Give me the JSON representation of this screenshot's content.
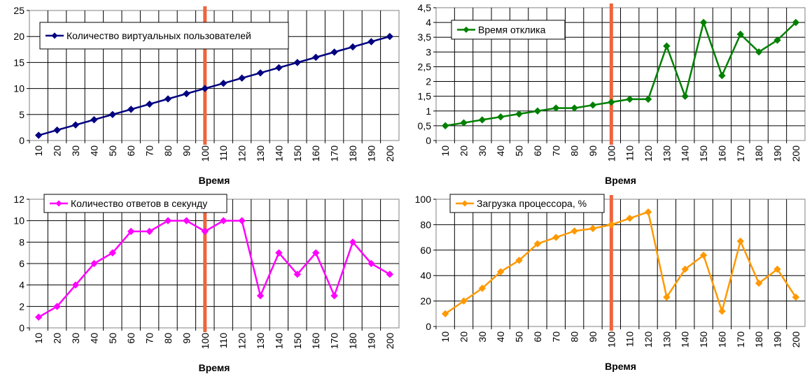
{
  "chart_data": [
    {
      "type": "line",
      "x": [
        10,
        20,
        30,
        40,
        50,
        60,
        70,
        80,
        90,
        100,
        110,
        120,
        130,
        140,
        150,
        160,
        170,
        180,
        190,
        200
      ],
      "series": [
        {
          "name": "Количество виртуальных пользователей",
          "color": "#000080",
          "values": [
            1,
            2,
            3,
            4,
            5,
            6,
            7,
            8,
            9,
            10,
            11,
            12,
            13,
            14,
            15,
            16,
            17,
            18,
            19,
            20
          ]
        }
      ],
      "ylim": [
        0,
        25
      ],
      "yticks": [
        "0",
        "5",
        "10",
        "15",
        "20",
        "25"
      ],
      "xlabel": "Время",
      "marker_x": 100,
      "marker_color": "#f0643c",
      "grid": true,
      "legend": "top-left"
    },
    {
      "type": "line",
      "x": [
        10,
        20,
        30,
        40,
        50,
        60,
        70,
        80,
        90,
        100,
        110,
        120,
        130,
        140,
        150,
        160,
        170,
        180,
        190,
        200
      ],
      "series": [
        {
          "name": "Время отклика",
          "color": "#008000",
          "values": [
            0.5,
            0.6,
            0.7,
            0.8,
            0.9,
            1.0,
            1.1,
            1.1,
            1.2,
            1.3,
            1.4,
            1.4,
            3.2,
            1.5,
            4.0,
            2.2,
            3.6,
            3.0,
            3.4,
            4.0
          ]
        }
      ],
      "ylim": [
        0,
        4.5
      ],
      "yticks": [
        "0",
        "0,5",
        "1",
        "1,5",
        "2",
        "2,5",
        "3",
        "3,5",
        "4",
        "4,5"
      ],
      "xlabel": "Время",
      "marker_x": 100,
      "marker_color": "#f0643c",
      "grid": true,
      "legend": "top-left"
    },
    {
      "type": "line",
      "x": [
        10,
        20,
        30,
        40,
        50,
        60,
        70,
        80,
        90,
        100,
        110,
        120,
        130,
        140,
        150,
        160,
        170,
        180,
        190,
        200
      ],
      "series": [
        {
          "name": "Количество ответов в секунду",
          "color": "#ff00ff",
          "values": [
            1,
            2,
            4,
            6,
            7,
            9,
            9,
            10,
            10,
            9,
            10,
            10,
            3,
            7,
            5,
            7,
            3,
            8,
            6,
            5
          ]
        }
      ],
      "ylim": [
        0,
        12
      ],
      "yticks": [
        "0",
        "2",
        "4",
        "6",
        "8",
        "10",
        "12"
      ],
      "xlabel": "Время",
      "marker_x": 100,
      "marker_color": "#f0643c",
      "grid": true,
      "legend": "top-left"
    },
    {
      "type": "line",
      "x": [
        10,
        20,
        30,
        40,
        50,
        60,
        70,
        80,
        90,
        100,
        110,
        120,
        130,
        140,
        150,
        160,
        170,
        180,
        190,
        200
      ],
      "series": [
        {
          "name": "Загрузка процессора, %",
          "color": "#ff9900",
          "values": [
            10,
            20,
            30,
            43,
            52,
            65,
            70,
            75,
            77,
            80,
            85,
            90,
            23,
            45,
            56,
            12,
            67,
            34,
            45,
            23
          ]
        }
      ],
      "ylim": [
        0,
        100
      ],
      "yticks": [
        "0",
        "20",
        "40",
        "60",
        "80",
        "100"
      ],
      "xlabel": "Время",
      "marker_x": 100,
      "marker_color": "#f0643c",
      "grid": true,
      "legend": "top-left"
    }
  ]
}
